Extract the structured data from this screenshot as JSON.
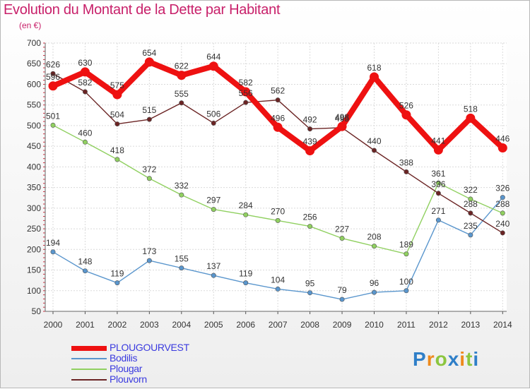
{
  "title": "Evolution du Montant de la Dette par Habitant",
  "subtitle": "(en €)",
  "logo_text": "Proxiti",
  "chart_data": {
    "type": "line",
    "title": "Evolution du Montant de la Dette par Habitant",
    "subtitle": "(en €)",
    "xlabel": "",
    "ylabel": "",
    "categories": [
      "2000",
      "2001",
      "2002",
      "2003",
      "2004",
      "2005",
      "2006",
      "2007",
      "2008",
      "2009",
      "2010",
      "2011",
      "2012",
      "2013",
      "2014"
    ],
    "ylim": [
      50,
      700
    ],
    "yticks": [
      50,
      100,
      150,
      200,
      250,
      300,
      350,
      400,
      450,
      500,
      550,
      600,
      650,
      700
    ],
    "grid": true,
    "legend_position": "bottom-left",
    "series": [
      {
        "name": "PLOUGOURVEST",
        "color": "#ee1111",
        "values": [
          596,
          630,
          575,
          654,
          622,
          644,
          582,
          496,
          439,
          498,
          618,
          526,
          441,
          518,
          446
        ]
      },
      {
        "name": "Bodilis",
        "color": "#5a96cd",
        "values": [
          194,
          148,
          119,
          173,
          155,
          137,
          119,
          104,
          95,
          79,
          96,
          100,
          271,
          235,
          326
        ]
      },
      {
        "name": "Plougar",
        "color": "#90d060",
        "values": [
          501,
          460,
          418,
          372,
          332,
          297,
          284,
          270,
          256,
          227,
          208,
          189,
          361,
          322,
          288
        ]
      },
      {
        "name": "Plouvorn",
        "color": "#6b2424",
        "values": [
          626,
          582,
          504,
          515,
          555,
          506,
          556,
          562,
          492,
          495,
          440,
          388,
          336,
          288,
          240
        ]
      }
    ]
  }
}
